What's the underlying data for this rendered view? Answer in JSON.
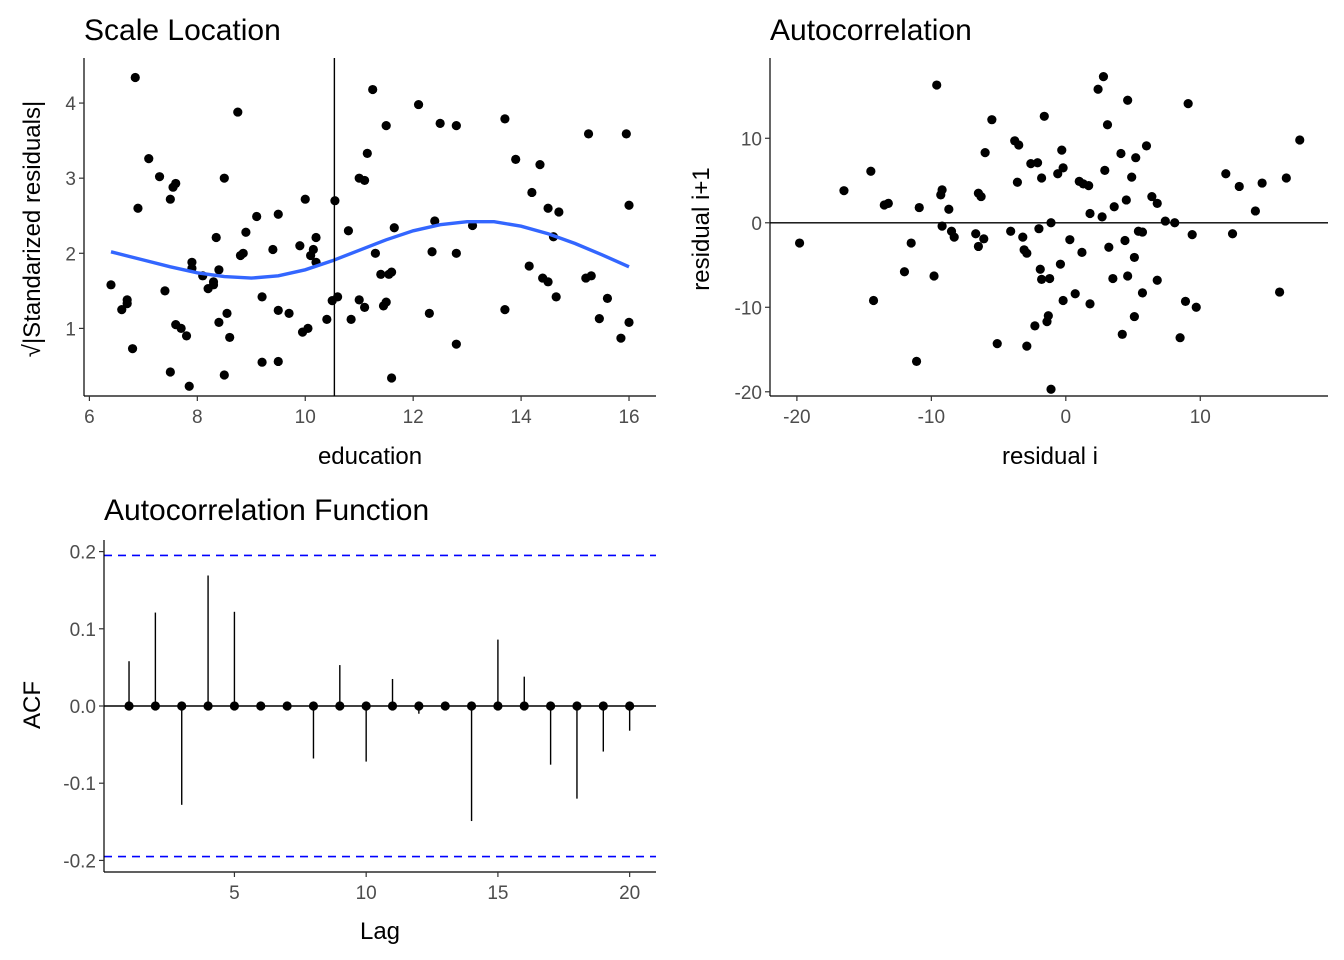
{
  "chart_data": [
    {
      "id": "scale-location",
      "type": "scatter",
      "title": "Scale Location",
      "xlabel": "education",
      "ylabel": "√|Standarized residuals|",
      "xlim": [
        5.9,
        16.5
      ],
      "ylim": [
        0.1,
        4.6
      ],
      "xticks": [
        6,
        8,
        10,
        12,
        14,
        16
      ],
      "yticks": [
        1,
        2,
        3,
        4
      ],
      "grid": false,
      "vline": 10.54,
      "colors": {
        "points": "#000000",
        "smooth": "#3366FF",
        "vline": "#000000"
      },
      "points": [
        [
          6.4,
          1.58
        ],
        [
          6.6,
          1.25
        ],
        [
          6.7,
          1.38
        ],
        [
          6.7,
          1.33
        ],
        [
          6.8,
          0.73
        ],
        [
          6.85,
          4.34
        ],
        [
          6.9,
          2.6
        ],
        [
          7.1,
          3.26
        ],
        [
          7.3,
          3.02
        ],
        [
          7.4,
          1.5
        ],
        [
          7.5,
          0.42
        ],
        [
          7.5,
          2.72
        ],
        [
          7.55,
          2.88
        ],
        [
          7.6,
          1.05
        ],
        [
          7.6,
          2.93
        ],
        [
          7.7,
          1.0
        ],
        [
          7.8,
          0.9
        ],
        [
          7.85,
          0.23
        ],
        [
          7.9,
          1.88
        ],
        [
          7.9,
          1.8
        ],
        [
          8.1,
          1.7
        ],
        [
          8.2,
          1.53
        ],
        [
          8.3,
          1.58
        ],
        [
          8.3,
          1.62
        ],
        [
          8.35,
          2.21
        ],
        [
          8.4,
          1.08
        ],
        [
          8.4,
          1.78
        ],
        [
          8.5,
          3.0
        ],
        [
          8.5,
          0.38
        ],
        [
          8.55,
          1.2
        ],
        [
          8.6,
          0.88
        ],
        [
          8.75,
          3.88
        ],
        [
          8.8,
          1.97
        ],
        [
          8.85,
          2.0
        ],
        [
          8.9,
          2.28
        ],
        [
          9.1,
          2.49
        ],
        [
          9.2,
          1.42
        ],
        [
          9.2,
          0.55
        ],
        [
          9.4,
          2.05
        ],
        [
          9.5,
          2.52
        ],
        [
          9.5,
          0.56
        ],
        [
          9.5,
          1.24
        ],
        [
          9.7,
          1.2
        ],
        [
          9.9,
          2.1
        ],
        [
          9.95,
          0.95
        ],
        [
          10.0,
          2.72
        ],
        [
          10.05,
          1.0
        ],
        [
          10.1,
          1.97
        ],
        [
          10.15,
          2.05
        ],
        [
          10.2,
          2.21
        ],
        [
          10.2,
          1.88
        ],
        [
          10.4,
          1.12
        ],
        [
          10.5,
          1.37
        ],
        [
          10.55,
          2.7
        ],
        [
          10.6,
          1.42
        ],
        [
          10.8,
          2.3
        ],
        [
          10.85,
          1.12
        ],
        [
          11.0,
          3.0
        ],
        [
          11.0,
          1.38
        ],
        [
          11.1,
          2.97
        ],
        [
          11.1,
          1.28
        ],
        [
          11.15,
          3.33
        ],
        [
          11.25,
          4.18
        ],
        [
          11.3,
          2.0
        ],
        [
          11.4,
          1.72
        ],
        [
          11.45,
          1.3
        ],
        [
          11.5,
          3.7
        ],
        [
          11.5,
          1.35
        ],
        [
          11.55,
          1.72
        ],
        [
          11.6,
          0.34
        ],
        [
          11.6,
          1.75
        ],
        [
          11.65,
          2.34
        ],
        [
          12.1,
          3.98
        ],
        [
          12.3,
          1.2
        ],
        [
          12.35,
          2.02
        ],
        [
          12.4,
          2.43
        ],
        [
          12.5,
          3.73
        ],
        [
          12.8,
          3.7
        ],
        [
          12.8,
          0.79
        ],
        [
          12.8,
          2.0
        ],
        [
          13.1,
          2.37
        ],
        [
          13.7,
          3.79
        ],
        [
          13.7,
          1.25
        ],
        [
          13.9,
          3.25
        ],
        [
          14.15,
          1.83
        ],
        [
          14.2,
          2.81
        ],
        [
          14.35,
          3.18
        ],
        [
          14.4,
          1.67
        ],
        [
          14.5,
          2.6
        ],
        [
          14.5,
          1.62
        ],
        [
          14.6,
          2.22
        ],
        [
          14.65,
          1.42
        ],
        [
          14.7,
          2.55
        ],
        [
          15.2,
          1.67
        ],
        [
          15.25,
          3.59
        ],
        [
          15.3,
          1.7
        ],
        [
          15.45,
          1.13
        ],
        [
          15.6,
          1.4
        ],
        [
          15.85,
          0.87
        ],
        [
          15.95,
          3.59
        ],
        [
          16.0,
          2.64
        ],
        [
          16.0,
          1.08
        ]
      ],
      "smooth": [
        [
          6.4,
          2.02
        ],
        [
          7.0,
          1.91
        ],
        [
          7.5,
          1.82
        ],
        [
          8.0,
          1.74
        ],
        [
          8.5,
          1.69
        ],
        [
          9.0,
          1.67
        ],
        [
          9.5,
          1.7
        ],
        [
          10.0,
          1.78
        ],
        [
          10.5,
          1.9
        ],
        [
          11.0,
          2.04
        ],
        [
          11.5,
          2.18
        ],
        [
          12.0,
          2.3
        ],
        [
          12.5,
          2.38
        ],
        [
          13.0,
          2.42
        ],
        [
          13.5,
          2.42
        ],
        [
          14.0,
          2.36
        ],
        [
          14.5,
          2.26
        ],
        [
          15.0,
          2.13
        ],
        [
          15.5,
          1.98
        ],
        [
          16.0,
          1.82
        ]
      ]
    },
    {
      "id": "autocorrelation",
      "type": "scatter",
      "title": "Autocorrelation",
      "xlabel": "residual i",
      "ylabel": "residual i+1",
      "xlim": [
        -22,
        19.5
      ],
      "ylim": [
        -20.5,
        19.5
      ],
      "xticks": [
        -20,
        -10,
        0,
        10
      ],
      "yticks": [
        -20,
        -10,
        0,
        10
      ],
      "grid": false,
      "hline": 0,
      "colors": {
        "points": "#000000",
        "hline": "#000000"
      },
      "points": [
        [
          -19.8,
          -2.4
        ],
        [
          -16.5,
          3.8
        ],
        [
          -14.5,
          6.1
        ],
        [
          -14.3,
          -9.2
        ],
        [
          -13.5,
          2.1
        ],
        [
          -13.2,
          2.3
        ],
        [
          -12.0,
          -5.8
        ],
        [
          -11.5,
          -2.4
        ],
        [
          -11.1,
          -16.4
        ],
        [
          -10.9,
          1.8
        ],
        [
          -9.8,
          -6.3
        ],
        [
          -9.6,
          16.3
        ],
        [
          -9.3,
          3.3
        ],
        [
          -9.2,
          3.9
        ],
        [
          -9.2,
          -0.4
        ],
        [
          -8.7,
          1.6
        ],
        [
          -8.5,
          -1.0
        ],
        [
          -8.3,
          -1.7
        ],
        [
          -6.7,
          -1.3
        ],
        [
          -6.5,
          -2.8
        ],
        [
          -6.5,
          3.5
        ],
        [
          -6.3,
          3.1
        ],
        [
          -6.1,
          -1.9
        ],
        [
          -6.0,
          8.3
        ],
        [
          -5.5,
          12.2
        ],
        [
          -5.1,
          -14.3
        ],
        [
          -4.1,
          -1.0
        ],
        [
          -3.8,
          9.7
        ],
        [
          -3.6,
          4.8
        ],
        [
          -3.5,
          9.2
        ],
        [
          -3.2,
          -1.7
        ],
        [
          -3.1,
          -3.2
        ],
        [
          -2.9,
          -3.6
        ],
        [
          -2.9,
          -14.6
        ],
        [
          -2.6,
          7.0
        ],
        [
          -2.3,
          -12.2
        ],
        [
          -2.1,
          7.1
        ],
        [
          -2.0,
          -0.7
        ],
        [
          -1.9,
          -5.5
        ],
        [
          -1.8,
          -6.7
        ],
        [
          -1.8,
          5.3
        ],
        [
          -1.6,
          12.6
        ],
        [
          -1.4,
          -11.7
        ],
        [
          -1.3,
          -11.0
        ],
        [
          -1.2,
          -6.6
        ],
        [
          -1.1,
          0.0
        ],
        [
          -1.1,
          -19.7
        ],
        [
          -0.6,
          5.8
        ],
        [
          -0.4,
          -4.9
        ],
        [
          -0.3,
          8.6
        ],
        [
          -0.2,
          6.5
        ],
        [
          -0.2,
          -9.2
        ],
        [
          0.3,
          -2.0
        ],
        [
          0.7,
          -8.4
        ],
        [
          1.0,
          4.9
        ],
        [
          1.2,
          -3.5
        ],
        [
          1.3,
          4.6
        ],
        [
          1.7,
          4.4
        ],
        [
          1.8,
          -9.6
        ],
        [
          1.8,
          1.1
        ],
        [
          2.4,
          15.8
        ],
        [
          2.7,
          0.7
        ],
        [
          2.8,
          17.3
        ],
        [
          2.9,
          6.2
        ],
        [
          3.1,
          11.6
        ],
        [
          3.2,
          -2.9
        ],
        [
          3.5,
          -6.6
        ],
        [
          3.6,
          1.9
        ],
        [
          4.1,
          8.2
        ],
        [
          4.2,
          -13.2
        ],
        [
          4.4,
          -2.1
        ],
        [
          4.5,
          2.7
        ],
        [
          4.6,
          14.5
        ],
        [
          4.6,
          -6.3
        ],
        [
          4.9,
          5.4
        ],
        [
          5.1,
          -4.1
        ],
        [
          5.1,
          -11.1
        ],
        [
          5.2,
          7.7
        ],
        [
          5.4,
          -1.0
        ],
        [
          5.7,
          -8.3
        ],
        [
          5.7,
          -1.1
        ],
        [
          6.0,
          9.1
        ],
        [
          6.4,
          3.1
        ],
        [
          6.8,
          -6.8
        ],
        [
          6.8,
          2.3
        ],
        [
          7.4,
          0.2
        ],
        [
          8.1,
          0.0
        ],
        [
          8.5,
          -13.6
        ],
        [
          8.9,
          -9.3
        ],
        [
          9.1,
          14.1
        ],
        [
          9.4,
          -1.4
        ],
        [
          9.7,
          -10.0
        ],
        [
          11.9,
          5.8
        ],
        [
          12.4,
          -1.3
        ],
        [
          12.9,
          4.3
        ],
        [
          14.1,
          1.4
        ],
        [
          14.6,
          4.7
        ],
        [
          15.9,
          -8.2
        ],
        [
          16.4,
          5.3
        ],
        [
          17.4,
          9.8
        ]
      ]
    },
    {
      "id": "acf",
      "type": "bar",
      "title": "Autocorrelation Function",
      "xlabel": "Lag",
      "ylabel": "ACF",
      "xlim": [
        0.05,
        21
      ],
      "ylim": [
        -0.215,
        0.215
      ],
      "xticks": [
        5,
        10,
        15,
        20
      ],
      "yticks": [
        -0.2,
        -0.1,
        0.0,
        0.1,
        0.2
      ],
      "ytick_labels": [
        "-0.2",
        "-0.1",
        "0.0",
        "0.1",
        "0.2"
      ],
      "grid": false,
      "confidence_bound": 0.195,
      "colors": {
        "bars": "#000000",
        "points": "#000000",
        "bounds": "#0000FF",
        "zero": "#000000"
      },
      "lags": [
        1,
        2,
        3,
        4,
        5,
        6,
        7,
        8,
        9,
        10,
        11,
        12,
        13,
        14,
        15,
        16,
        17,
        18,
        19,
        20
      ],
      "values": [
        0.058,
        0.121,
        -0.128,
        0.169,
        0.122,
        0.0,
        0.0,
        -0.068,
        0.053,
        -0.072,
        0.035,
        -0.01,
        0.0,
        -0.149,
        0.086,
        0.038,
        -0.076,
        -0.12,
        -0.059,
        -0.032
      ]
    }
  ]
}
